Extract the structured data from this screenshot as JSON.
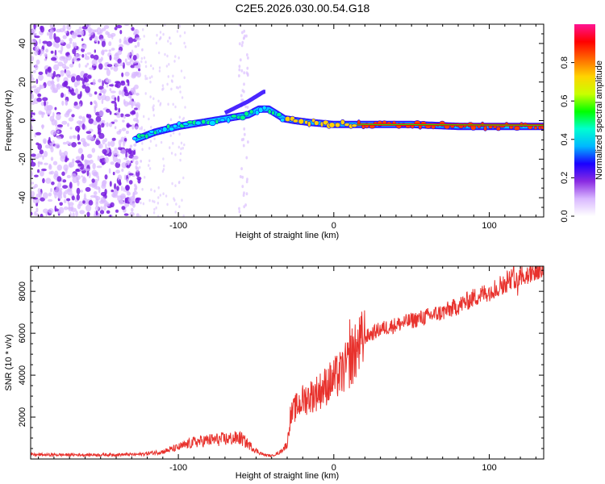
{
  "title": "C2E5.2026.030.00.54.G18",
  "colors": {
    "snr_line": "#e8322d",
    "accent": "#6a00e8"
  },
  "chart_data": [
    {
      "type": "heatmap",
      "title": "C2E5.2026.030.00.54.G18",
      "xlabel": "Height of straight line (km)",
      "ylabel": "Frequency (Hz)",
      "xlim": [
        -195,
        135
      ],
      "ylim": [
        -50,
        50
      ],
      "xticks": [
        -100,
        0,
        100
      ],
      "yticks": [
        -40,
        -20,
        0,
        20,
        40
      ],
      "colorbar": {
        "label": "Normalized spectral amplitude",
        "range": [
          0,
          1
        ],
        "ticks": [
          "0.0",
          "0.2",
          "0.4",
          "0.6",
          "0.8"
        ],
        "colormap": [
          "#ffffff",
          "#d9b8ff",
          "#8a2be2",
          "#1a00ff",
          "#00b8ff",
          "#00ffd0",
          "#00ff00",
          "#c8ff00",
          "#ffd400",
          "#ff6a00",
          "#ff0000",
          "#ff1493"
        ]
      },
      "ridge": {
        "x": [
          -128,
          -115,
          -100,
          -85,
          -70,
          -55,
          -48,
          -42,
          -38,
          -32,
          -25,
          -15,
          0,
          20,
          50,
          80,
          100,
          120,
          135
        ],
        "freq": [
          -10,
          -6,
          -3,
          -1,
          1,
          3,
          6,
          6,
          4,
          1,
          0,
          -1,
          -2,
          -2,
          -2,
          -3,
          -3,
          -3,
          -3
        ]
      },
      "noise_region_x": [
        -195,
        -125
      ]
    },
    {
      "type": "line",
      "xlabel": "Height of straight line (km)",
      "ylabel": "SNR (10 * v/v)",
      "xlim": [
        -195,
        135
      ],
      "ylim": [
        0,
        9200
      ],
      "xticks": [
        -100,
        0,
        100
      ],
      "yticks": [
        2000,
        4000,
        6000,
        8000
      ],
      "envelope": {
        "x": [
          -195,
          -150,
          -125,
          -110,
          -100,
          -90,
          -80,
          -70,
          -60,
          -55,
          -50,
          -45,
          -40,
          -35,
          -30,
          -28,
          -25,
          -20,
          -15,
          -10,
          -5,
          0,
          5,
          10,
          15,
          20,
          30,
          40,
          50,
          60,
          70,
          80,
          90,
          100,
          110,
          120,
          135
        ],
        "y": [
          200,
          200,
          220,
          350,
          550,
          800,
          900,
          950,
          1000,
          700,
          400,
          200,
          150,
          300,
          700,
          2000,
          2400,
          2800,
          3000,
          3200,
          3500,
          3800,
          4100,
          4600,
          5200,
          5800,
          6200,
          6400,
          6600,
          6800,
          7000,
          7300,
          7700,
          8000,
          8400,
          8800,
          9000
        ]
      }
    }
  ]
}
